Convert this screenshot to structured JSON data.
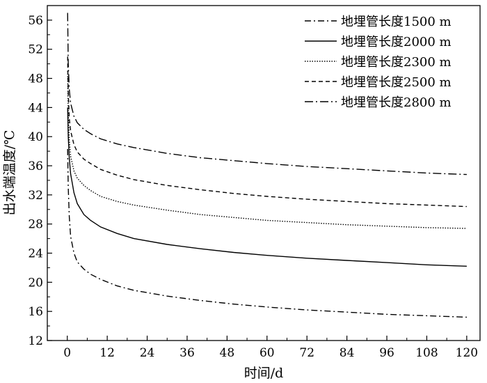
{
  "chart_data": {
    "type": "line",
    "xlabel": "时间/d",
    "ylabel": "出水端温度/℃",
    "xlim": [
      -6,
      124
    ],
    "ylim": [
      12,
      58
    ],
    "xticks": [
      0,
      12,
      24,
      36,
      48,
      60,
      72,
      84,
      96,
      108,
      120
    ],
    "yticks": [
      12,
      16,
      20,
      24,
      28,
      32,
      36,
      40,
      44,
      48,
      52,
      56
    ],
    "grid": false,
    "legend_position": "top-right",
    "series": [
      {
        "name": "地埋管长度1500 m",
        "dash": "dash-dot",
        "x": [
          0.1,
          0.3,
          0.6,
          1,
          2,
          3,
          5,
          7,
          10,
          15,
          20,
          30,
          40,
          50,
          60,
          72,
          84,
          96,
          108,
          120
        ],
        "y": [
          38.3,
          33.0,
          29.0,
          26.3,
          24.0,
          22.8,
          21.8,
          21.1,
          20.4,
          19.5,
          18.9,
          18.1,
          17.5,
          17.0,
          16.6,
          16.2,
          15.9,
          15.6,
          15.4,
          15.2
        ]
      },
      {
        "name": "地埋管长度2000 m",
        "dash": "solid",
        "x": [
          0.1,
          0.3,
          0.6,
          1,
          2,
          3,
          5,
          7,
          10,
          15,
          20,
          30,
          40,
          50,
          60,
          72,
          84,
          96,
          108,
          120
        ],
        "y": [
          44.0,
          40.0,
          37.0,
          34.9,
          32.3,
          30.8,
          29.3,
          28.5,
          27.6,
          26.7,
          26.0,
          25.2,
          24.6,
          24.1,
          23.7,
          23.3,
          23.0,
          22.7,
          22.4,
          22.2
        ]
      },
      {
        "name": "地埋管长度2300 m",
        "dash": "dotted",
        "x": [
          0.1,
          0.3,
          0.6,
          1,
          2,
          3,
          5,
          7,
          10,
          15,
          20,
          30,
          40,
          50,
          60,
          72,
          84,
          96,
          108,
          120
        ],
        "y": [
          49.0,
          43.0,
          39.5,
          37.3,
          35.3,
          34.3,
          33.3,
          32.6,
          31.8,
          31.1,
          30.6,
          29.9,
          29.3,
          28.9,
          28.5,
          28.2,
          27.9,
          27.7,
          27.5,
          27.4
        ]
      },
      {
        "name": "地埋管长度2500 m",
        "dash": "dashed",
        "x": [
          0.1,
          0.3,
          0.6,
          1,
          2,
          3,
          5,
          7,
          10,
          15,
          20,
          30,
          40,
          50,
          60,
          72,
          84,
          96,
          108,
          120
        ],
        "y": [
          51.0,
          46.0,
          42.5,
          40.8,
          38.9,
          37.9,
          36.9,
          36.3,
          35.5,
          34.7,
          34.1,
          33.3,
          32.7,
          32.2,
          31.8,
          31.4,
          31.1,
          30.8,
          30.6,
          30.4
        ]
      },
      {
        "name": "地埋管长度2800 m",
        "dash": "long-dash-dot",
        "x": [
          0.1,
          0.3,
          0.6,
          1,
          2,
          3,
          5,
          7,
          10,
          15,
          20,
          30,
          40,
          50,
          60,
          72,
          84,
          96,
          108,
          120
        ],
        "y": [
          57.0,
          50.0,
          46.5,
          44.6,
          42.8,
          41.9,
          41.0,
          40.4,
          39.7,
          39.0,
          38.5,
          37.7,
          37.1,
          36.7,
          36.3,
          35.9,
          35.6,
          35.3,
          35.0,
          34.8
        ]
      }
    ]
  }
}
